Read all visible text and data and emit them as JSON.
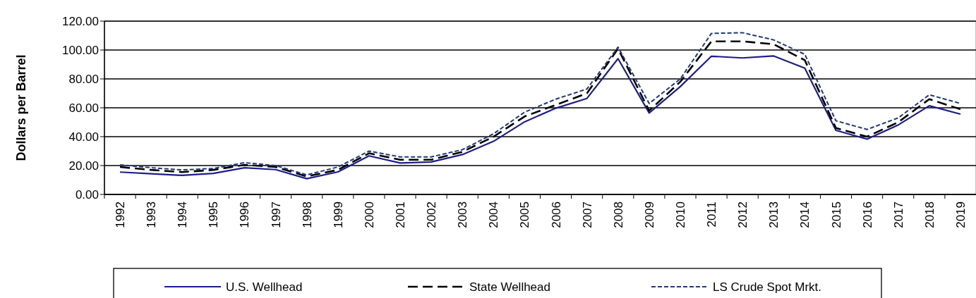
{
  "chart_data": {
    "type": "line",
    "ylabel": "Dollars per Barrel",
    "categories": [
      "1992",
      "1993",
      "1994",
      "1995",
      "1996",
      "1997",
      "1998",
      "1999",
      "2000",
      "2001",
      "2002",
      "2003",
      "2004",
      "2005",
      "2006",
      "2007",
      "2008",
      "2009",
      "2010",
      "2011",
      "2012",
      "2013",
      "2014",
      "2015",
      "2016",
      "2017",
      "2018",
      "2019"
    ],
    "series": [
      {
        "name": "U.S. Wellhead",
        "color": "#1c1c8c",
        "line_style": "solid",
        "values": [
          15.5,
          14.3,
          13.2,
          14.6,
          18.5,
          17.2,
          10.9,
          15.6,
          26.7,
          21.8,
          22.5,
          27.6,
          36.8,
          50.3,
          59.7,
          66.5,
          94,
          56.4,
          74.7,
          95.7,
          94.5,
          95.9,
          87.4,
          44.4,
          38.3,
          48.1,
          61.4,
          55.6
        ]
      },
      {
        "name": "State Wellhead",
        "color": "#000000",
        "line_style": "dashed",
        "values": [
          19,
          17,
          15.5,
          17,
          20.5,
          19,
          12.5,
          17,
          28.5,
          24,
          24,
          29.5,
          40,
          54,
          62,
          70,
          101,
          58,
          78,
          106,
          106,
          104,
          93,
          46,
          40,
          50,
          66,
          59
        ]
      },
      {
        "name": "LS Crude Spot Mrkt.",
        "color": "#1f3a7a",
        "line_style": "dotted",
        "values": [
          20.5,
          18.5,
          17,
          18,
          22,
          20,
          13.5,
          19,
          30,
          26,
          26,
          31,
          42,
          57,
          66,
          73,
          102,
          63,
          80,
          111.5,
          112,
          107,
          97,
          51,
          45,
          53,
          69,
          63
        ]
      }
    ],
    "ylim": [
      0,
      120
    ],
    "yticks": [
      {
        "value": 0,
        "label": "0.00"
      },
      {
        "value": 20,
        "label": "20.00"
      },
      {
        "value": 40,
        "label": "40.00"
      },
      {
        "value": 60,
        "label": "60.00"
      },
      {
        "value": 80,
        "label": "80.00"
      },
      {
        "value": 100,
        "label": "100.00"
      },
      {
        "value": 120,
        "label": "120.00"
      }
    ],
    "grid": "y",
    "legend": "bottom",
    "marker": "none"
  }
}
